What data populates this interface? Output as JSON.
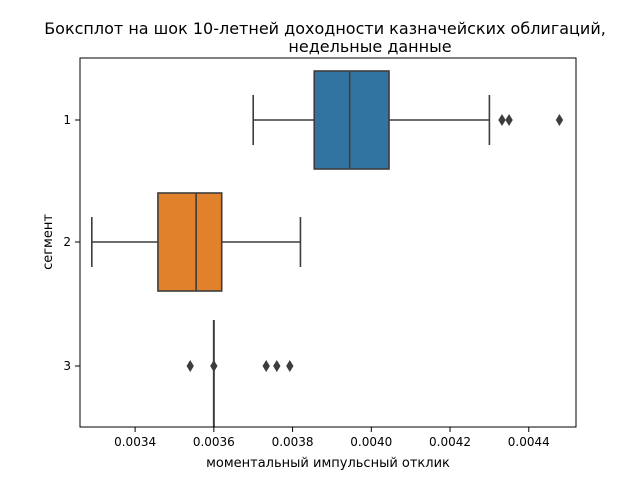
{
  "chart_data": {
    "type": "boxplot",
    "orientation": "horizontal",
    "title_lines": [
      "Боксплот на шок 10-летней доходности казначейских облигаций,",
      "недельные данные"
    ],
    "xlabel": "моментальный импульсный отклик",
    "ylabel": "сегмент",
    "xlim": [
      0.00326,
      0.00452
    ],
    "xticks": [
      0.0034,
      0.0036,
      0.0038,
      0.004,
      0.0042,
      0.0044
    ],
    "xtick_labels": [
      "0.0034",
      "0.0036",
      "0.0038",
      "0.0040",
      "0.0042",
      "0.0044"
    ],
    "categories": [
      "1",
      "2",
      "3"
    ],
    "series": [
      {
        "category": "1",
        "color": "#3274a1",
        "whisker_low": 0.0037,
        "q1": 0.003855,
        "median": 0.003945,
        "q3": 0.004045,
        "whisker_high": 0.0043,
        "outliers": [
          0.004332,
          0.00435,
          0.004478
        ]
      },
      {
        "category": "2",
        "color": "#e1812c",
        "whisker_low": 0.00329,
        "q1": 0.003458,
        "median": 0.003555,
        "q3": 0.00362,
        "whisker_high": 0.00382,
        "outliers": []
      },
      {
        "category": "3",
        "color": "#3274a1",
        "whisker_low": 0.0036,
        "q1": 0.0036,
        "median": 0.0036,
        "q3": 0.0036,
        "whisker_high": 0.0036,
        "whisker_span": [
          0.00356,
          0.00364
        ],
        "outliers": [
          0.00354,
          0.0036,
          0.003733,
          0.00376,
          0.003793
        ]
      }
    ],
    "grid": false,
    "legend": "none"
  },
  "colors": {
    "box_edge": "#3d3d3d",
    "axis": "#000000"
  }
}
